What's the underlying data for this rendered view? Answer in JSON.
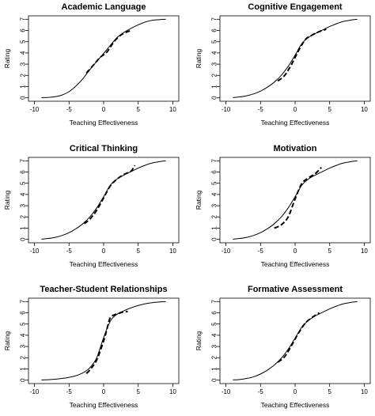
{
  "chart_data": [
    {
      "type": "line",
      "title": "Academic Language",
      "xlabel": "Teaching Effectiveness",
      "ylabel": "Rating",
      "xlim": [
        -10,
        10
      ],
      "ylim": [
        0,
        7
      ],
      "xticks": [
        -10,
        -5,
        0,
        5,
        10
      ],
      "yticks": [
        0,
        1,
        2,
        3,
        4,
        5,
        6,
        7
      ],
      "grid": false,
      "series": [
        {
          "style": "solid",
          "x": [
            -9,
            -8,
            -7,
            -6,
            -5,
            -4,
            -3,
            -2,
            -1,
            0,
            1,
            2,
            3,
            4,
            5,
            6,
            7,
            8,
            9
          ],
          "y": [
            0.02,
            0.04,
            0.1,
            0.25,
            0.55,
            1.05,
            1.7,
            2.5,
            3.25,
            3.95,
            4.7,
            5.4,
            5.85,
            6.2,
            6.5,
            6.75,
            6.9,
            6.96,
            7.0
          ]
        },
        {
          "style": "dashed",
          "x": [
            -2.5,
            -1.5,
            -0.5,
            0.5,
            1.5,
            2.5,
            3.5,
            4.0
          ],
          "y": [
            2.2,
            2.9,
            3.6,
            4.1,
            5.0,
            5.6,
            5.9,
            6.0
          ]
        }
      ]
    },
    {
      "type": "line",
      "title": "Cognitive Engagement",
      "xlabel": "Teaching Effectiveness",
      "ylabel": "Rating",
      "xlim": [
        -10,
        10
      ],
      "ylim": [
        0,
        7
      ],
      "xticks": [
        -10,
        -5,
        0,
        5,
        10
      ],
      "yticks": [
        0,
        1,
        2,
        3,
        4,
        5,
        6,
        7
      ],
      "grid": false,
      "series": [
        {
          "style": "solid",
          "x": [
            -9,
            -8,
            -7,
            -6,
            -5,
            -4,
            -3,
            -2,
            -1,
            0,
            1,
            2,
            3,
            4,
            5,
            6,
            7,
            8,
            9
          ],
          "y": [
            0.02,
            0.08,
            0.18,
            0.35,
            0.6,
            0.95,
            1.4,
            2.0,
            2.8,
            3.8,
            4.85,
            5.4,
            5.75,
            6.05,
            6.35,
            6.6,
            6.8,
            6.92,
            7.0
          ]
        },
        {
          "style": "dashed",
          "x": [
            -2.5,
            -1.5,
            -0.5,
            0.5,
            1.5,
            2.5,
            3.5,
            4.5
          ],
          "y": [
            1.5,
            2.0,
            3.0,
            4.2,
            5.2,
            5.6,
            5.9,
            6.1
          ]
        }
      ]
    },
    {
      "type": "line",
      "title": "Critical Thinking",
      "xlabel": "Teaching Effectiveness",
      "ylabel": "Rating",
      "xlim": [
        -10,
        10
      ],
      "ylim": [
        0,
        7
      ],
      "xticks": [
        -10,
        -5,
        0,
        5,
        10
      ],
      "yticks": [
        0,
        1,
        2,
        3,
        4,
        5,
        6,
        7
      ],
      "grid": false,
      "series": [
        {
          "style": "solid",
          "x": [
            -9,
            -8,
            -7,
            -6,
            -5,
            -4,
            -3,
            -2,
            -1,
            0,
            1,
            2,
            3,
            4,
            5,
            6,
            7,
            8,
            9
          ],
          "y": [
            0.02,
            0.08,
            0.18,
            0.35,
            0.6,
            0.95,
            1.4,
            2.0,
            2.8,
            3.8,
            4.85,
            5.4,
            5.75,
            6.05,
            6.35,
            6.6,
            6.8,
            6.92,
            7.0
          ]
        },
        {
          "style": "dashed",
          "x": [
            -2.8,
            -2.0,
            -1.0,
            0.0,
            1.0,
            2.0,
            3.0,
            4.0,
            4.5
          ],
          "y": [
            1.4,
            1.8,
            2.6,
            3.7,
            4.8,
            5.4,
            5.8,
            6.1,
            6.6
          ]
        }
      ]
    },
    {
      "type": "line",
      "title": "Motivation",
      "xlabel": "Teaching Effectiveness",
      "ylabel": "Rating",
      "xlim": [
        -10,
        10
      ],
      "ylim": [
        0,
        7
      ],
      "xticks": [
        -10,
        -5,
        0,
        5,
        10
      ],
      "yticks": [
        0,
        1,
        2,
        3,
        4,
        5,
        6,
        7
      ],
      "grid": false,
      "series": [
        {
          "style": "solid",
          "x": [
            -9,
            -8,
            -7,
            -6,
            -5,
            -4,
            -3,
            -2,
            -1,
            0,
            1,
            2,
            3,
            4,
            5,
            6,
            7,
            8,
            9
          ],
          "y": [
            0.02,
            0.08,
            0.18,
            0.35,
            0.6,
            0.95,
            1.4,
            2.0,
            2.8,
            3.8,
            4.85,
            5.4,
            5.75,
            6.05,
            6.35,
            6.6,
            6.8,
            6.92,
            7.0
          ]
        },
        {
          "style": "dashed",
          "x": [
            -3.0,
            -2.0,
            -1.0,
            0.0,
            1.0,
            2.0,
            3.0,
            3.8
          ],
          "y": [
            1.0,
            1.3,
            2.0,
            3.6,
            5.0,
            5.5,
            5.9,
            6.4
          ]
        }
      ]
    },
    {
      "type": "line",
      "title": "Teacher-Student Relationships",
      "xlabel": "Teaching Effectiveness",
      "ylabel": "Rating",
      "xlim": [
        -10,
        10
      ],
      "ylim": [
        0,
        7
      ],
      "xticks": [
        -10,
        -5,
        0,
        5,
        10
      ],
      "yticks": [
        0,
        1,
        2,
        3,
        4,
        5,
        6,
        7
      ],
      "grid": false,
      "series": [
        {
          "style": "solid",
          "x": [
            -9,
            -8,
            -7,
            -6,
            -5,
            -4,
            -3,
            -2,
            -1,
            0,
            1,
            2,
            3,
            4,
            5,
            6,
            7,
            8,
            9
          ],
          "y": [
            0.02,
            0.04,
            0.08,
            0.15,
            0.25,
            0.4,
            0.65,
            1.1,
            2.0,
            3.8,
            5.3,
            5.9,
            6.2,
            6.45,
            6.65,
            6.8,
            6.9,
            6.96,
            7.0
          ]
        },
        {
          "style": "dashed",
          "x": [
            -2.5,
            -2.0,
            -1.0,
            0.0,
            0.5,
            1.0,
            2.0,
            3.0,
            3.5
          ],
          "y": [
            0.6,
            0.9,
            1.8,
            3.5,
            4.6,
            5.6,
            5.9,
            6.1,
            6.1
          ]
        }
      ]
    },
    {
      "type": "line",
      "title": "Formative Assessment",
      "xlabel": "Teaching Effectiveness",
      "ylabel": "Rating",
      "xlim": [
        -10,
        10
      ],
      "ylim": [
        0,
        7
      ],
      "xticks": [
        -10,
        -5,
        0,
        5,
        10
      ],
      "yticks": [
        0,
        1,
        2,
        3,
        4,
        5,
        6,
        7
      ],
      "grid": false,
      "series": [
        {
          "style": "solid",
          "x": [
            -9,
            -8,
            -7,
            -6,
            -5,
            -4,
            -3,
            -2,
            -1,
            0,
            1,
            2,
            3,
            4,
            5,
            6,
            7,
            8,
            9
          ],
          "y": [
            0.02,
            0.06,
            0.15,
            0.3,
            0.55,
            0.9,
            1.35,
            1.95,
            2.75,
            3.75,
            4.75,
            5.35,
            5.75,
            6.05,
            6.35,
            6.6,
            6.8,
            6.92,
            7.0
          ]
        },
        {
          "style": "dashed",
          "x": [
            -2.5,
            -1.5,
            -0.5,
            0.5,
            1.5,
            2.5,
            3.5
          ],
          "y": [
            1.6,
            2.1,
            3.1,
            4.2,
            5.1,
            5.6,
            6.0
          ]
        }
      ]
    }
  ]
}
